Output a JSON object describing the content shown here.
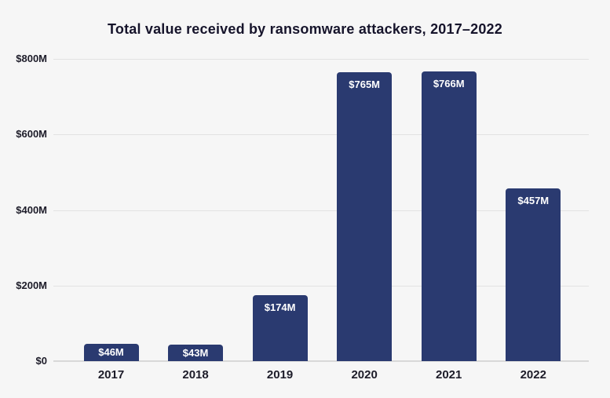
{
  "chart_data": {
    "type": "bar",
    "title": "Total value received by ransomware attackers, 2017–2022",
    "categories": [
      "2017",
      "2018",
      "2019",
      "2020",
      "2021",
      "2022"
    ],
    "values": [
      46,
      43,
      174,
      765,
      766,
      457
    ],
    "bar_labels": [
      "$46M",
      "$43M",
      "$174M",
      "$765M",
      "$766M",
      "$457M"
    ],
    "y_ticks": [
      {
        "value": 0,
        "label": "$0"
      },
      {
        "value": 200,
        "label": "$200M"
      },
      {
        "value": 400,
        "label": "$400M"
      },
      {
        "value": 600,
        "label": "$600M"
      },
      {
        "value": 800,
        "label": "$800M"
      }
    ],
    "ylim": [
      0,
      800
    ],
    "xlabel": "",
    "ylabel": "",
    "legend": "none",
    "grid": "horizontal",
    "colors": {
      "background": "#f6f6f6",
      "bar": "#2a3a70",
      "gridline": "#e2e2e2",
      "zero_line": "#d8d8d8",
      "title_text": "#16142b",
      "tick_text": "#1d1c29",
      "bar_label_text": "#ffffff"
    }
  }
}
